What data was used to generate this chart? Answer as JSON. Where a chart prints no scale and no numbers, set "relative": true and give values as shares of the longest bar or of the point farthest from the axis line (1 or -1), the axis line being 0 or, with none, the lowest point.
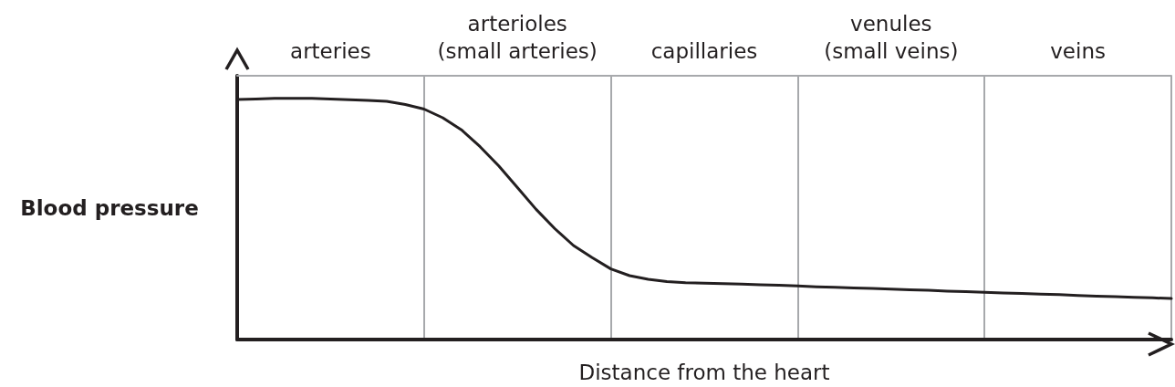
{
  "chart_data": {
    "type": "line",
    "relative": true,
    "xlabel": "Distance from the heart",
    "ylabel": "Blood pressure",
    "categories": [
      null,
      null,
      null,
      null,
      null,
      "arteries",
      null,
      null,
      null,
      null,
      null,
      null,
      null,
      null,
      null,
      "arterioles\n(small arteries)",
      null,
      null,
      null,
      null,
      null,
      null,
      null,
      null,
      null,
      "capillaries",
      null,
      null,
      null,
      null,
      null,
      null,
      null,
      null,
      null,
      "venules\n(small veins)",
      null,
      null,
      null,
      null,
      null,
      null,
      null,
      null,
      null,
      "veins",
      null,
      null,
      null,
      null,
      null
    ],
    "grid": "x",
    "marker": "none",
    "line_style": "solid",
    "series": [
      {
        "color": "#231f20",
        "values": [
          0.996,
          0.998,
          1,
          1,
          1,
          0.998,
          0.995,
          0.992,
          0.988,
          0.975,
          0.956,
          0.92,
          0.87,
          0.8,
          0.72,
          0.63,
          0.54,
          0.46,
          0.39,
          0.34,
          0.293,
          0.265,
          0.25,
          0.24,
          0.236,
          0.234,
          0.232,
          0.23,
          0.227,
          0.225,
          0.222,
          0.219,
          0.217,
          0.214,
          0.212,
          0.209,
          0.206,
          0.204,
          0.201,
          0.199,
          0.196,
          0.193,
          0.191,
          0.188,
          0.186,
          0.183,
          0.18,
          0.178,
          0.175,
          0.173,
          0.17
        ]
      }
    ]
  }
}
